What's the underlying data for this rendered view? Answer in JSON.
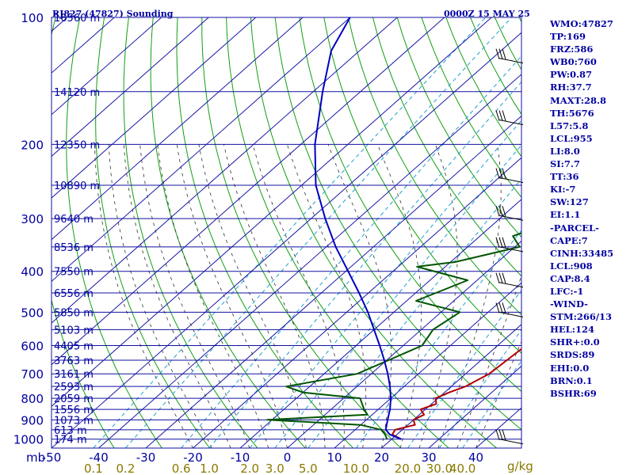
{
  "chart_data": {
    "type": "line",
    "title": "RJ827 (47827) Sounding",
    "datetime": "0000Z 15 MAY 25",
    "pressure_axis_unit": "mb",
    "pressure_levels": [
      100,
      200,
      300,
      400,
      500,
      600,
      700,
      800,
      900,
      1000
    ],
    "temperature_ticks": [
      -50,
      -40,
      -30,
      -20,
      -10,
      0,
      10,
      20,
      30,
      40
    ],
    "mixing_ratio_unit": "g/kg",
    "mixing_ratio_labels": [
      "0.1",
      "0.2",
      "0.6",
      "1.0",
      "2.0",
      "3.0",
      "5.0",
      "10.0",
      "20.0",
      "30.0",
      "40.0"
    ],
    "height_labels": [
      {
        "p": 100,
        "text": "16560 m"
      },
      {
        "p": 150,
        "text": "14120 m"
      },
      {
        "p": 200,
        "text": "12350 m"
      },
      {
        "p": 250,
        "text": "10890 m"
      },
      {
        "p": 300,
        "text": "9640 m"
      },
      {
        "p": 350,
        "text": "8536 m"
      },
      {
        "p": 400,
        "text": "7550 m"
      },
      {
        "p": 450,
        "text": "6556 m"
      },
      {
        "p": 500,
        "text": "5850 m"
      },
      {
        "p": 550,
        "text": "5103 m"
      },
      {
        "p": 600,
        "text": "4405 m"
      },
      {
        "p": 650,
        "text": "3763 m"
      },
      {
        "p": 700,
        "text": "3161 m"
      },
      {
        "p": 750,
        "text": "2593 m"
      },
      {
        "p": 800,
        "text": "2059 m"
      },
      {
        "p": 850,
        "text": "1556 m"
      },
      {
        "p": 900,
        "text": "1073 m"
      },
      {
        "p": 950,
        "text": "613 m"
      },
      {
        "p": 1000,
        "text": "174 m"
      }
    ],
    "series": [
      {
        "color": "#b00000",
        "points": [
          [
            1000,
            22
          ],
          [
            975,
            19
          ],
          [
            950,
            18.5
          ],
          [
            925,
            21.5
          ],
          [
            900,
            20
          ],
          [
            875,
            21
          ],
          [
            850,
            19
          ],
          [
            825,
            21
          ],
          [
            800,
            19.5
          ],
          [
            775,
            21
          ],
          [
            750,
            23
          ],
          [
            725,
            24
          ],
          [
            700,
            25
          ],
          [
            650,
            25.5
          ],
          [
            600,
            26
          ],
          [
            550,
            26.5
          ],
          [
            500,
            26.5
          ],
          [
            450,
            27
          ],
          [
            400,
            28
          ],
          [
            370,
            29
          ],
          [
            340,
            30.5
          ],
          [
            300,
            32
          ],
          [
            270,
            34.5
          ],
          [
            250,
            36.5
          ],
          [
            220,
            39
          ],
          [
            200,
            40.5
          ],
          [
            170,
            43.5
          ],
          [
            160,
            45
          ],
          [
            150,
            49
          ],
          [
            130,
            53
          ],
          [
            110,
            55
          ],
          [
            100,
            56
          ]
        ]
      },
      {
        "color": "#005500",
        "points": [
          [
            1000,
            19
          ],
          [
            975,
            17.5
          ],
          [
            950,
            15.5
          ],
          [
            925,
            10
          ],
          [
            900,
            -11
          ],
          [
            875,
            9
          ],
          [
            850,
            7
          ],
          [
            800,
            3.5
          ],
          [
            775,
            -10
          ],
          [
            750,
            -15
          ],
          [
            700,
            -3
          ],
          [
            600,
            4
          ],
          [
            550,
            2.5
          ],
          [
            500,
            4
          ],
          [
            470,
            -8
          ],
          [
            420,
            -2
          ],
          [
            390,
            -16
          ],
          [
            380,
            -9
          ],
          [
            350,
            1
          ],
          [
            330,
            -3
          ],
          [
            320,
            -1
          ],
          [
            300,
            5
          ],
          [
            285,
            13
          ],
          [
            270,
            19
          ],
          [
            260,
            22
          ]
        ]
      },
      {
        "color": "#0000c0",
        "points": [
          [
            1000,
            22
          ],
          [
            975,
            18.5
          ],
          [
            950,
            16.5
          ],
          [
            925,
            15.5
          ],
          [
            900,
            14.5
          ],
          [
            850,
            12.5
          ],
          [
            800,
            10
          ],
          [
            750,
            7
          ],
          [
            700,
            3.5
          ],
          [
            650,
            -0.5
          ],
          [
            600,
            -5
          ],
          [
            550,
            -10
          ],
          [
            500,
            -15.5
          ],
          [
            450,
            -22
          ],
          [
            400,
            -29.5
          ],
          [
            350,
            -38
          ],
          [
            300,
            -47
          ],
          [
            250,
            -57
          ],
          [
            200,
            -67
          ],
          [
            150,
            -78
          ],
          [
            120,
            -86
          ],
          [
            100,
            -90
          ]
        ]
      }
    ]
  },
  "indices": [
    "WMO:47827",
    "TP:169",
    "FRZ:586",
    "WB0:760",
    "PW:0.87",
    "RH:37.7",
    "MAXT:28.8",
    "TH:5676",
    "L57:5.8",
    "LCL:955",
    "LI:8.0",
    "SI:7.7",
    "TT:36",
    "KI:-7",
    "SW:127",
    "EI:1.1",
    "-PARCEL-",
    "CAPE:7",
    "CINH:33485",
    "LCL:908",
    "CAP:8.4",
    "LFC:-1",
    "-WIND-",
    "STM:266/13",
    "HEL:124",
    "SHR+:0.0",
    "SRDS:89",
    "EHI:0.0",
    "BRN:0.1",
    "BSHR:69"
  ]
}
